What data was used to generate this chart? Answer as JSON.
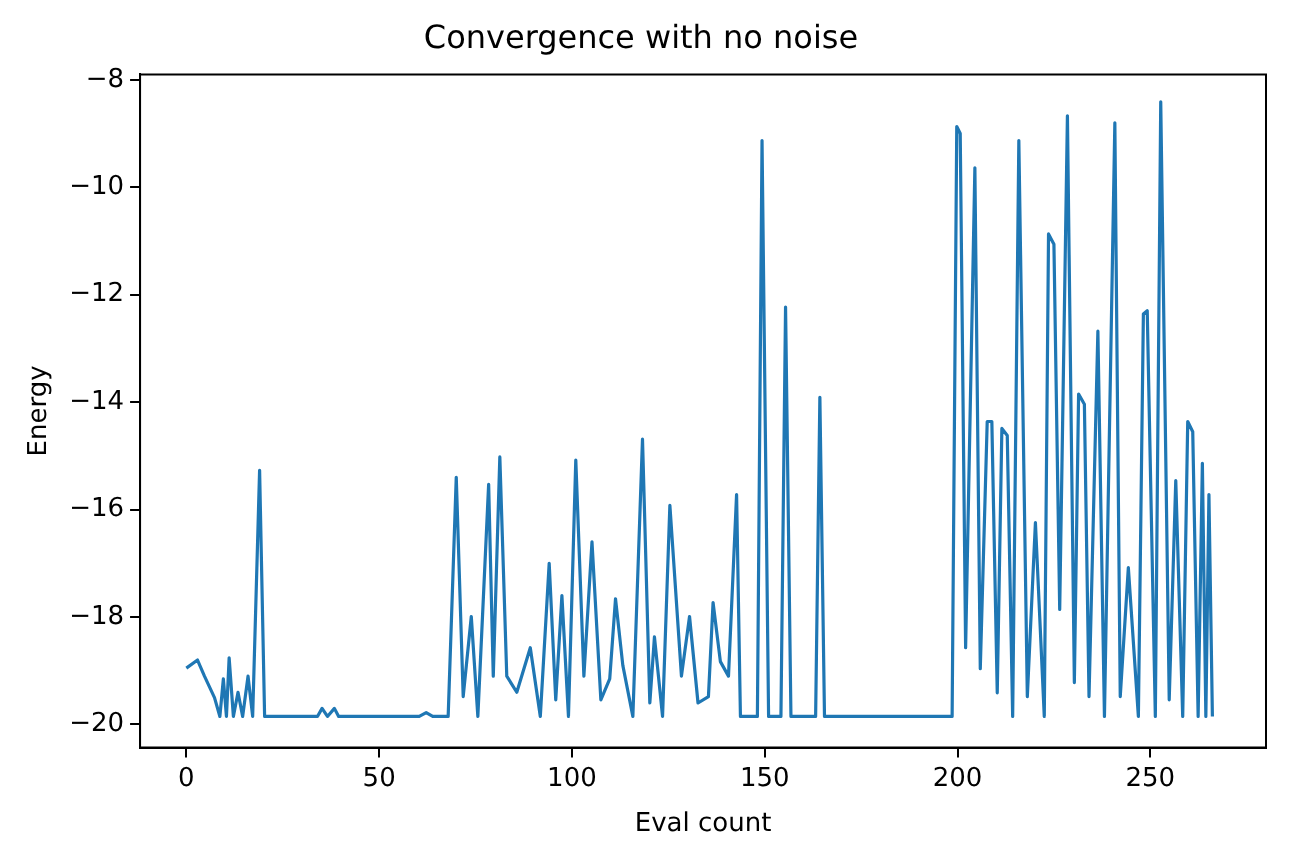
{
  "chart_data": {
    "type": "line",
    "title": "Convergence with no noise",
    "xlabel": "Eval count",
    "ylabel": "Energy",
    "xlim": [
      -12,
      280
    ],
    "xticks": [
      0,
      50,
      100,
      150,
      200,
      250
    ],
    "ylim": [
      -20.43,
      -7.9
    ],
    "yticks": [
      -20,
      -18,
      -16,
      -14,
      -12,
      -10,
      -8
    ],
    "grid": false,
    "legend": false,
    "marker": "none",
    "line_style": "solid",
    "series": [
      {
        "color": "#1f77b4",
        "x": [
          0,
          2.9,
          4.7,
          7.3,
          8.7,
          9.6,
          10.4,
          11.1,
          12.2,
          13.4,
          14.6,
          16,
          17.2,
          19,
          20.3,
          34,
          35.2,
          36.6,
          38.4,
          39.5,
          60.4,
          62.2,
          63.9,
          67.9,
          70,
          71.8,
          73.9,
          75.6,
          78.4,
          79.6,
          81.3,
          83.1,
          85.7,
          89.2,
          91.8,
          94.1,
          95.8,
          97.4,
          99.1,
          101,
          103.1,
          105.2,
          107.5,
          109.8,
          111.3,
          113.2,
          115.8,
          118.3,
          120.2,
          121.4,
          123.5,
          125.4,
          128.4,
          130.5,
          132.7,
          135.4,
          136.6,
          138.5,
          140.6,
          142.7,
          143.7,
          148.1,
          149.3,
          151,
          154.2,
          155.4,
          156.8,
          163.2,
          164.3,
          165.5,
          198.6,
          199.8,
          200.7,
          202.1,
          204.5,
          205.9,
          207.7,
          208.9,
          210.3,
          211.5,
          212.9,
          214.3,
          215.9,
          218.1,
          220.2,
          222.5,
          223.6,
          225,
          226.5,
          228.5,
          230.3,
          231.4,
          232.9,
          234.1,
          236.4,
          238.1,
          240.8,
          242.2,
          244.3,
          246.9,
          248.2,
          249.2,
          251.3,
          252.7,
          254.9,
          256.6,
          258.4,
          259.7,
          261,
          262.4,
          263.5,
          264.4,
          265.2,
          266.1
        ],
        "values": [
          -18.95,
          -18.8,
          -19.1,
          -19.5,
          -19.85,
          -19.15,
          -19.85,
          -18.76,
          -19.85,
          -19.4,
          -19.85,
          -19.1,
          -19.85,
          -15.27,
          -19.85,
          -19.85,
          -19.7,
          -19.85,
          -19.7,
          -19.85,
          -19.85,
          -19.78,
          -19.85,
          -19.85,
          -15.4,
          -19.48,
          -17.99,
          -19.85,
          -15.53,
          -19.1,
          -15.02,
          -19.1,
          -19.4,
          -18.57,
          -19.85,
          -17.0,
          -19.54,
          -17.6,
          -19.85,
          -15.08,
          -19.1,
          -16.6,
          -19.54,
          -19.15,
          -17.66,
          -18.9,
          -19.85,
          -14.69,
          -19.6,
          -18.37,
          -19.85,
          -15.92,
          -19.1,
          -17.99,
          -19.6,
          -19.48,
          -17.73,
          -18.83,
          -19.1,
          -15.72,
          -19.85,
          -19.85,
          -9.13,
          -19.85,
          -19.85,
          -12.23,
          -19.85,
          -19.85,
          -13.91,
          -19.85,
          -19.85,
          -8.87,
          -9.0,
          -18.57,
          -9.64,
          -18.96,
          -14.36,
          -14.36,
          -19.41,
          -14.49,
          -14.62,
          -19.85,
          -9.13,
          -19.48,
          -16.24,
          -19.85,
          -10.87,
          -11.06,
          -17.86,
          -8.67,
          -19.22,
          -13.85,
          -14.04,
          -19.48,
          -12.68,
          -19.85,
          -8.8,
          -19.48,
          -17.08,
          -19.85,
          -12.36,
          -12.3,
          -19.85,
          -8.41,
          -19.54,
          -15.46,
          -19.85,
          -14.36,
          -14.55,
          -19.85,
          -15.14,
          -19.85,
          -15.72,
          -19.85
        ]
      }
    ]
  }
}
